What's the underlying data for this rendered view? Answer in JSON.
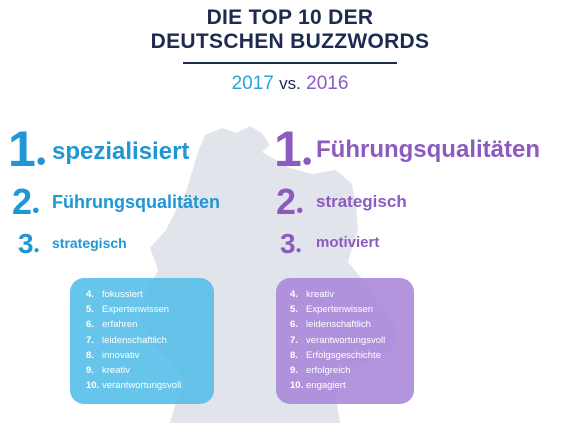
{
  "header": {
    "title_line1": "DIE TOP 10 DER",
    "title_line2": "DEUTSCHEN BUZZWORDS",
    "year_2017": "2017",
    "vs": "vs.",
    "year_2016": "2016"
  },
  "colors": {
    "navy": "#1d2b4f",
    "blue": "#1e97d4",
    "purple": "#8c5bbf",
    "map_gray": "#e0e4ea"
  },
  "left_2017": {
    "top": [
      {
        "rank": "1",
        "word": "spezialisiert"
      },
      {
        "rank": "2",
        "word": "Führungsqualitäten"
      },
      {
        "rank": "3",
        "word": "strategisch"
      }
    ],
    "rest": [
      {
        "rank": "4.",
        "word": "fokussiert"
      },
      {
        "rank": "5.",
        "word": "Expertenwissen"
      },
      {
        "rank": "6.",
        "word": "erfahren"
      },
      {
        "rank": "7.",
        "word": "leidenschaftlich"
      },
      {
        "rank": "8.",
        "word": "innovativ"
      },
      {
        "rank": "9.",
        "word": "kreativ"
      },
      {
        "rank": "10.",
        "word": "verantwortungsvoll"
      }
    ]
  },
  "right_2016": {
    "top": [
      {
        "rank": "1",
        "word": "Führungsqualitäten"
      },
      {
        "rank": "2",
        "word": "strategisch"
      },
      {
        "rank": "3",
        "word": "motiviert"
      }
    ],
    "rest": [
      {
        "rank": "4.",
        "word": "kreativ"
      },
      {
        "rank": "5.",
        "word": "Expertenwissen"
      },
      {
        "rank": "6.",
        "word": "leidenschaftlich"
      },
      {
        "rank": "7.",
        "word": "verantwortungsvoll"
      },
      {
        "rank": "8.",
        "word": "Erfolgsgeschichte"
      },
      {
        "rank": "9.",
        "word": "erfolgreich"
      },
      {
        "rank": "10.",
        "word": "engagiert"
      }
    ]
  }
}
